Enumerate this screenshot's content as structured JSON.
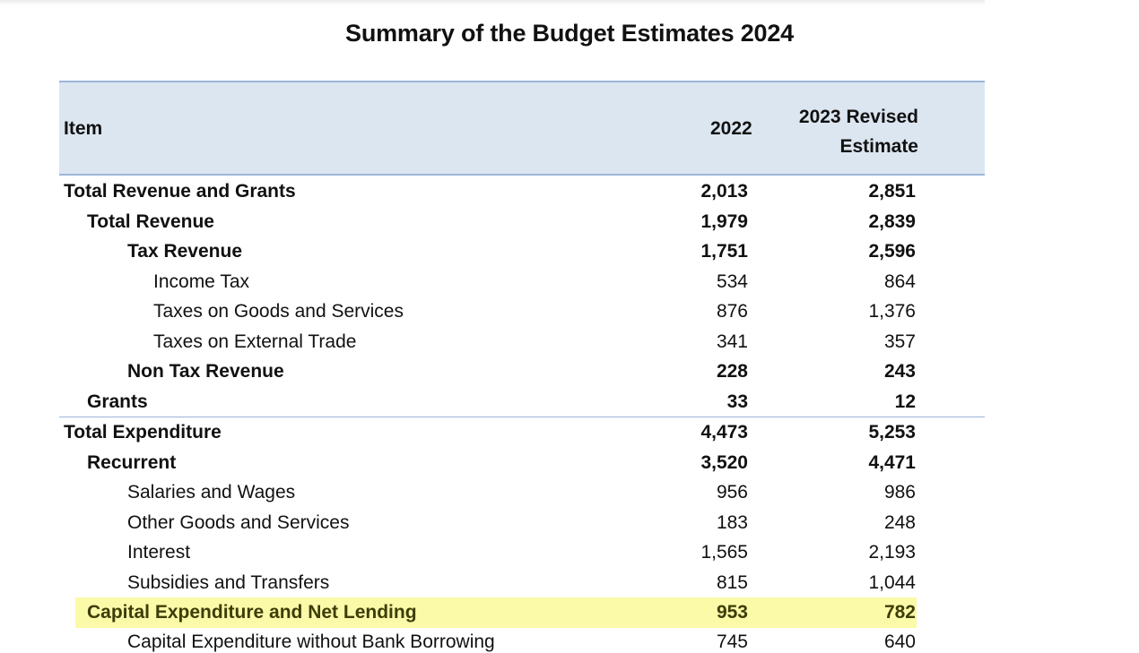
{
  "title": "Summary of the Budget Estimates 2024",
  "header": {
    "item": "Item",
    "col2022": "2022",
    "col2023_line1": "2023 Revised",
    "col2023_line2": "Estimate"
  },
  "rows": [
    {
      "label": "Total Revenue and Grants",
      "v2022": "2,013",
      "v2023": "2,851"
    },
    {
      "label": "Total Revenue",
      "v2022": "1,979",
      "v2023": "2,839"
    },
    {
      "label": "Tax Revenue",
      "v2022": "1,751",
      "v2023": "2,596"
    },
    {
      "label": "Income Tax",
      "v2022": "534",
      "v2023": "864"
    },
    {
      "label": "Taxes on Goods and Services",
      "v2022": "876",
      "v2023": "1,376"
    },
    {
      "label": "Taxes on External Trade",
      "v2022": "341",
      "v2023": "357"
    },
    {
      "label": "Non Tax Revenue",
      "v2022": "228",
      "v2023": "243"
    },
    {
      "label": "Grants",
      "v2022": "33",
      "v2023": "12"
    },
    {
      "label": "Total Expenditure",
      "v2022": "4,473",
      "v2023": "5,253"
    },
    {
      "label": "Recurrent",
      "v2022": "3,520",
      "v2023": "4,471"
    },
    {
      "label": "Salaries and Wages",
      "v2022": "956",
      "v2023": "986"
    },
    {
      "label": "Other Goods and Services",
      "v2022": "183",
      "v2023": "248"
    },
    {
      "label": "Interest",
      "v2022": "1,565",
      "v2023": "2,193"
    },
    {
      "label": "Subsidies and Transfers",
      "v2022": "815",
      "v2023": "1,044"
    },
    {
      "label": "Capital Expenditure and Net Lending",
      "v2022": "953",
      "v2023": "782"
    },
    {
      "label": "Capital Expenditure without Bank Borrowing",
      "v2022": "745",
      "v2023": "640"
    }
  ]
}
